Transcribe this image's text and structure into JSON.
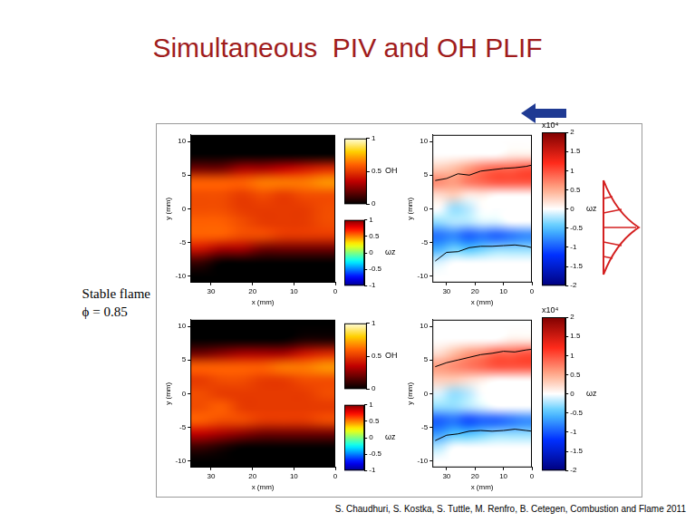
{
  "title": "Simultaneous  PIV and OH PLIF",
  "side_label": [
    "Stable flame",
    "ϕ = 0.85"
  ],
  "citation": "S. Chaudhuri, S. Kostka, S. Tuttle, M. Renfro, B. Cetegen, Combustion and Flame 2011",
  "chart_data": [
    {
      "type": "heatmap",
      "xlabel": "x (mm)",
      "ylabel": "y (mm)",
      "grid": false,
      "xlim": [
        35,
        0
      ],
      "xticks": [
        30,
        20,
        10,
        0
      ],
      "ylim": [
        -11,
        11
      ],
      "yticks": [
        -10,
        -5,
        0,
        5,
        10
      ],
      "x_edges": [
        35,
        30,
        25,
        20,
        15,
        10,
        5,
        0
      ],
      "y_edges": [
        -11,
        -9,
        -7,
        -5,
        -3,
        -1,
        1,
        3,
        5,
        7,
        9,
        11
      ],
      "cells": [
        [
          0,
          0,
          0,
          0,
          0,
          0,
          0
        ],
        [
          0.1,
          0,
          0,
          0,
          0,
          0,
          0
        ],
        [
          0.4,
          0.3,
          0.3,
          0.2,
          0.2,
          0.2,
          0.2
        ],
        [
          0.6,
          0.6,
          0.55,
          0.55,
          0.5,
          0.5,
          0.5
        ],
        [
          0.6,
          0.6,
          0.55,
          0.5,
          0.5,
          0.5,
          0.55
        ],
        [
          0.55,
          0.55,
          0.5,
          0.5,
          0.5,
          0.5,
          0.55
        ],
        [
          0.55,
          0.55,
          0.5,
          0.55,
          0.5,
          0.55,
          0.55
        ],
        [
          0.6,
          0.6,
          0.6,
          0.65,
          0.65,
          0.65,
          0.7
        ],
        [
          0.2,
          0.2,
          0.3,
          0.3,
          0.35,
          0.4,
          0.45
        ],
        [
          0,
          0,
          0,
          0,
          0,
          0,
          0
        ],
        [
          0,
          0,
          0,
          0,
          0,
          0,
          0
        ]
      ],
      "colorbars": [
        {
          "label": "OH",
          "range": [
            0,
            1
          ],
          "ticks": [
            0,
            0.5,
            1
          ]
        },
        {
          "label": "ωz",
          "range": [
            -1,
            1
          ],
          "ticks": [
            -1,
            -0.5,
            0,
            0.5,
            1
          ]
        }
      ]
    },
    {
      "type": "heatmap",
      "xlabel": "x (mm)",
      "ylabel": "y (mm)",
      "grid": false,
      "xlim": [
        35,
        0
      ],
      "xticks": [
        30,
        20,
        10,
        0
      ],
      "ylim": [
        -11,
        11
      ],
      "yticks": [
        -10,
        -5,
        0,
        5,
        10
      ],
      "x_edges": [
        35,
        30,
        25,
        20,
        15,
        10,
        5,
        0
      ],
      "y_edges": [
        -11,
        -9,
        -7,
        -5,
        -3,
        -1,
        1,
        3,
        5,
        7,
        9,
        11
      ],
      "cells": [
        [
          0,
          0,
          0,
          0,
          0,
          0,
          0
        ],
        [
          -0.1,
          0,
          0,
          0,
          0,
          0,
          0
        ],
        [
          -0.6,
          -0.4,
          -0.5,
          -0.4,
          -0.3,
          -0.3,
          -0.3
        ],
        [
          -0.9,
          -0.8,
          -1.0,
          -0.9,
          -1.0,
          -0.9,
          -0.8
        ],
        [
          -0.3,
          -0.2,
          -0.2,
          -0.1,
          -0.1,
          0,
          0
        ],
        [
          0,
          -0.3,
          -0.2,
          0,
          0,
          0,
          0
        ],
        [
          0.2,
          0.3,
          0.1,
          0.1,
          0,
          0,
          0
        ],
        [
          0.7,
          0.6,
          0.8,
          0.9,
          1.0,
          1.0,
          1.0
        ],
        [
          0.3,
          0.4,
          0.6,
          0.8,
          0.9,
          0.9,
          1.0
        ],
        [
          0,
          0,
          0,
          0,
          0,
          0.1,
          0.1
        ],
        [
          0,
          0,
          0,
          0,
          0,
          0,
          0
        ]
      ],
      "contours": [
        {
          "x": [
            34,
            30,
            26,
            22,
            18,
            14,
            10,
            6,
            2,
            0
          ],
          "y": [
            4.2,
            4.5,
            5.2,
            5.0,
            5.6,
            5.8,
            6.0,
            6.1,
            6.3,
            6.5
          ]
        },
        {
          "x": [
            34,
            30,
            26,
            22,
            18,
            14,
            10,
            6,
            2,
            0
          ],
          "y": [
            -7.8,
            -6.5,
            -6.4,
            -5.8,
            -5.6,
            -5.6,
            -5.5,
            -5.4,
            -5.6,
            -5.8
          ]
        }
      ],
      "colorbars": [
        {
          "label": "ωz",
          "scale_label": "x10⁴",
          "range": [
            -2,
            2
          ],
          "ticks": [
            -2,
            -1.5,
            -1,
            -0.5,
            0,
            0.5,
            1,
            1.5,
            2
          ]
        }
      ]
    },
    {
      "type": "heatmap",
      "xlabel": "x (mm)",
      "ylabel": "y (mm)",
      "grid": false,
      "xlim": [
        35,
        0
      ],
      "xticks": [
        30,
        20,
        10,
        0
      ],
      "ylim": [
        -11,
        11
      ],
      "yticks": [
        -10,
        -5,
        0,
        5,
        10
      ],
      "x_edges": [
        35,
        30,
        25,
        20,
        15,
        10,
        5,
        0
      ],
      "y_edges": [
        -11,
        -9,
        -7,
        -5,
        -3,
        -1,
        1,
        3,
        5,
        7,
        9,
        11
      ],
      "cells": [
        [
          0,
          0,
          0,
          0,
          0,
          0,
          0
        ],
        [
          0.1,
          0.05,
          0,
          0,
          0,
          0,
          0
        ],
        [
          0.35,
          0.3,
          0.25,
          0.2,
          0.2,
          0.2,
          0.2
        ],
        [
          0.6,
          0.55,
          0.55,
          0.5,
          0.5,
          0.5,
          0.55
        ],
        [
          0.55,
          0.6,
          0.5,
          0.5,
          0.5,
          0.5,
          0.5
        ],
        [
          0.55,
          0.5,
          0.5,
          0.5,
          0.5,
          0.5,
          0.55
        ],
        [
          0.5,
          0.55,
          0.55,
          0.5,
          0.5,
          0.55,
          0.55
        ],
        [
          0.6,
          0.6,
          0.6,
          0.6,
          0.65,
          0.65,
          0.7
        ],
        [
          0.2,
          0.25,
          0.3,
          0.3,
          0.3,
          0.4,
          0.45
        ],
        [
          0,
          0,
          0,
          0,
          0,
          0.05,
          0.05
        ],
        [
          0,
          0,
          0,
          0,
          0,
          0,
          0
        ]
      ],
      "colorbars": [
        {
          "label": "OH",
          "range": [
            0,
            1
          ],
          "ticks": [
            0,
            0.5,
            1
          ]
        },
        {
          "label": "ωz",
          "range": [
            -1,
            1
          ],
          "ticks": [
            -1,
            -0.5,
            0,
            0.5,
            1
          ]
        }
      ]
    },
    {
      "type": "heatmap",
      "xlabel": "x (mm)",
      "ylabel": "y (mm)",
      "grid": false,
      "xlim": [
        35,
        0
      ],
      "xticks": [
        30,
        20,
        10,
        0
      ],
      "ylim": [
        -11,
        11
      ],
      "yticks": [
        -10,
        -5,
        0,
        5,
        10
      ],
      "x_edges": [
        35,
        30,
        25,
        20,
        15,
        10,
        5,
        0
      ],
      "y_edges": [
        -11,
        -9,
        -7,
        -5,
        -3,
        -1,
        1,
        3,
        5,
        7,
        9,
        11
      ],
      "cells": [
        [
          0,
          0,
          0,
          0,
          0,
          0,
          0
        ],
        [
          -0.2,
          0,
          0,
          0,
          0,
          0,
          0
        ],
        [
          -0.7,
          -0.5,
          -0.5,
          -0.4,
          -0.3,
          -0.3,
          -0.3
        ],
        [
          -1.0,
          -0.9,
          -1.1,
          -1.0,
          -1.0,
          -0.9,
          -0.8
        ],
        [
          -0.3,
          -0.3,
          -0.2,
          -0.1,
          0,
          0,
          0
        ],
        [
          -0.1,
          -0.3,
          -0.2,
          0,
          0,
          0,
          0
        ],
        [
          0.3,
          0.3,
          0.2,
          0.1,
          0,
          0,
          0
        ],
        [
          0.6,
          0.7,
          0.8,
          0.9,
          1.0,
          1.0,
          1.0
        ],
        [
          0.2,
          0.4,
          0.6,
          0.7,
          0.9,
          0.9,
          1.0
        ],
        [
          0,
          0,
          0,
          0,
          0,
          0.1,
          0.1
        ],
        [
          0,
          0,
          0,
          0,
          0,
          0,
          0
        ]
      ],
      "contours": [
        {
          "x": [
            34,
            30,
            26,
            22,
            18,
            14,
            10,
            6,
            2,
            0
          ],
          "y": [
            4.0,
            4.6,
            5.0,
            5.4,
            5.8,
            6.0,
            6.3,
            6.2,
            6.5,
            6.6
          ]
        },
        {
          "x": [
            34,
            30,
            26,
            22,
            18,
            14,
            10,
            6,
            2,
            0
          ],
          "y": [
            -7.0,
            -6.2,
            -6.0,
            -5.6,
            -5.5,
            -5.6,
            -5.5,
            -5.3,
            -5.5,
            -5.6
          ]
        }
      ],
      "colorbars": [
        {
          "label": "ωz",
          "scale_label": "x10⁴",
          "range": [
            -2,
            2
          ],
          "ticks": [
            -2,
            -1.5,
            -1,
            -0.5,
            0,
            0.5,
            1,
            1.5,
            2
          ]
        }
      ]
    }
  ]
}
